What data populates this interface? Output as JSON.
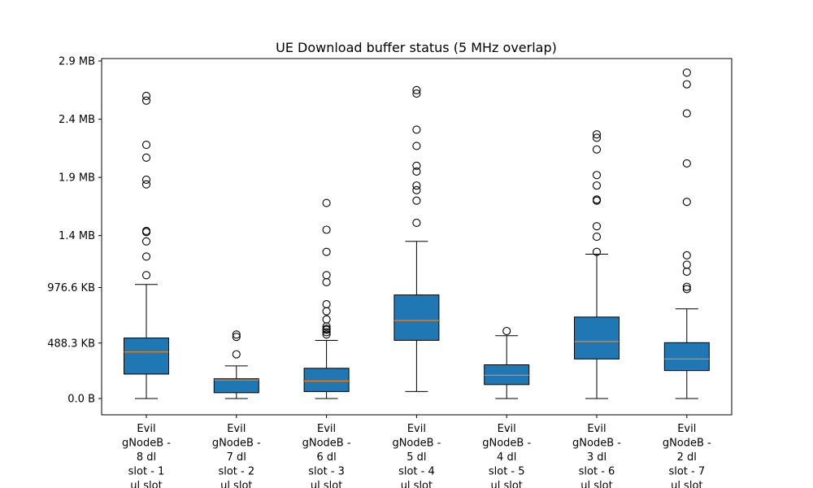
{
  "chart_data": {
    "type": "box",
    "title": "UE Download buffer status (5 MHz overlap)",
    "xlabel": "",
    "ylabel": "",
    "unit": "MB",
    "ylim": [
      -0.14,
      2.9
    ],
    "y_ticks": [
      {
        "value": 0.0,
        "label": "0.0 B"
      },
      {
        "value": 0.4769,
        "label": "488.3 KB"
      },
      {
        "value": 0.9537,
        "label": "976.6 KB"
      },
      {
        "value": 1.4,
        "label": "1.4 MB"
      },
      {
        "value": 1.9,
        "label": "1.9 MB"
      },
      {
        "value": 2.4,
        "label": "2.4 MB"
      },
      {
        "value": 2.9,
        "label": "2.9 MB"
      }
    ],
    "grid": false,
    "box_color": "#1f77b4",
    "median_color": "#ff7f0e",
    "categories": [
      [
        "Evil",
        "gNodeB -",
        "8 dl",
        "slot - 1",
        "ul slot"
      ],
      [
        "Evil",
        "gNodeB -",
        "7 dl",
        "slot - 2",
        "ul slot"
      ],
      [
        "Evil",
        "gNodeB -",
        "6 dl",
        "slot - 3",
        "ul slot"
      ],
      [
        "Evil",
        "gNodeB -",
        "5 dl",
        "slot - 4",
        "ul slot"
      ],
      [
        "Evil",
        "gNodeB -",
        "4 dl",
        "slot - 5",
        "ul slot"
      ],
      [
        "Evil",
        "gNodeB -",
        "3 dl",
        "slot - 6",
        "ul slot"
      ],
      [
        "Evil",
        "gNodeB -",
        "2 dl",
        "slot - 7",
        "ul slot"
      ]
    ],
    "boxes": [
      {
        "whisker_low": 0.0,
        "q1": 0.21,
        "median": 0.4,
        "q3": 0.52,
        "whisker_high": 0.98,
        "outliers": [
          1.06,
          1.22,
          1.35,
          1.43,
          1.44,
          1.84,
          1.88,
          2.07,
          2.18,
          2.56,
          2.6
        ]
      },
      {
        "whisker_low": 0.0,
        "q1": 0.05,
        "median": 0.16,
        "q3": 0.17,
        "whisker_high": 0.28,
        "outliers": [
          0.38,
          0.53,
          0.55
        ]
      },
      {
        "whisker_low": 0.0,
        "q1": 0.06,
        "median": 0.15,
        "q3": 0.26,
        "whisker_high": 0.5,
        "outliers": [
          0.55,
          0.57,
          0.59,
          0.6,
          0.62,
          0.68,
          0.75,
          0.81,
          1.0,
          1.06,
          1.26,
          1.45,
          1.68
        ]
      },
      {
        "whisker_low": 0.06,
        "q1": 0.5,
        "median": 0.67,
        "q3": 0.89,
        "whisker_high": 1.35,
        "outliers": [
          1.51,
          1.7,
          1.79,
          1.83,
          1.95,
          2.0,
          2.17,
          2.31,
          2.62,
          2.65
        ]
      },
      {
        "whisker_low": 0.0,
        "q1": 0.12,
        "median": 0.2,
        "q3": 0.29,
        "whisker_high": 0.54,
        "outliers": [
          0.58
        ]
      },
      {
        "whisker_low": 0.0,
        "q1": 0.34,
        "median": 0.49,
        "q3": 0.7,
        "whisker_high": 1.24,
        "outliers": [
          1.26,
          1.39,
          1.48,
          1.7,
          1.71,
          1.83,
          1.92,
          2.14,
          2.24,
          2.27
        ]
      },
      {
        "whisker_low": 0.0,
        "q1": 0.24,
        "median": 0.34,
        "q3": 0.48,
        "whisker_high": 0.77,
        "outliers": [
          0.94,
          0.96,
          1.09,
          1.15,
          1.23,
          1.69,
          2.02,
          2.45,
          2.7,
          2.8
        ]
      }
    ]
  }
}
